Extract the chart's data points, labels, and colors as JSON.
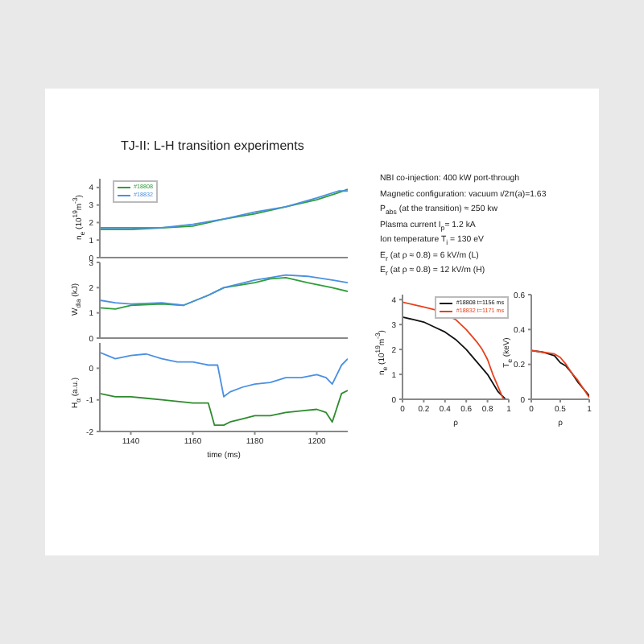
{
  "chart_data": [
    {
      "type": "other",
      "title": "TJ-II: L-H transition experiments",
      "annotations": [
        "NBI co-injection: 400 kW port-through",
        "Magnetic configuration: vacuum ι/2π(a)=1.63",
        "P$_{abs}$ (at the transition) ≈ 250 kw",
        "Plasma current I$_{p}$= 1.2 kA",
        "Ion temperature T$_{i}$ = 130 eV",
        "E$_{r}$ (at ρ ≈ 0.8) = 6 kV/m (L)",
        "E$_{r}$ (at ρ ≈ 0.8) = 12 kV/m (H)"
      ]
    },
    {
      "type": "line",
      "ylabel": "n$_{e}$ (10$^{19}$m$^{-3}$)",
      "xlim": [
        1130,
        1210
      ],
      "ylim": [
        0,
        4.5
      ],
      "yticks": [
        0,
        1,
        2,
        3,
        4
      ],
      "tick_labels": "y",
      "legend": "top left",
      "series": [
        {
          "name": "#18808",
          "color": "#2e9e3a",
          "x": [
            1130,
            1140,
            1150,
            1160,
            1170,
            1180,
            1190,
            1200,
            1207,
            1210
          ],
          "values": [
            1.6,
            1.6,
            1.7,
            1.8,
            2.2,
            2.5,
            2.9,
            3.3,
            3.7,
            3.9
          ]
        },
        {
          "name": "#18832",
          "color": "#4a90e2",
          "x": [
            1130,
            1140,
            1150,
            1160,
            1170,
            1180,
            1190,
            1200,
            1207,
            1210
          ],
          "values": [
            1.7,
            1.7,
            1.7,
            1.9,
            2.2,
            2.6,
            2.9,
            3.4,
            3.8,
            3.8
          ]
        }
      ]
    },
    {
      "type": "line",
      "ylabel": "W$_{dia}$ (kJ)",
      "xlim": [
        1130,
        1210
      ],
      "ylim": [
        0,
        3
      ],
      "yticks": [
        0,
        1,
        2,
        3
      ],
      "tick_labels": "y",
      "legend": false,
      "series": [
        {
          "color": "#2e9e3a",
          "x": [
            1130,
            1135,
            1140,
            1150,
            1157,
            1165,
            1170,
            1180,
            1185,
            1190,
            1197,
            1205,
            1210
          ],
          "values": [
            1.2,
            1.15,
            1.3,
            1.35,
            1.3,
            1.7,
            2.0,
            2.2,
            2.35,
            2.4,
            2.2,
            2.0,
            1.85
          ]
        },
        {
          "color": "#4a90e2",
          "x": [
            1130,
            1135,
            1140,
            1150,
            1157,
            1165,
            1170,
            1180,
            1185,
            1190,
            1197,
            1205,
            1210
          ],
          "values": [
            1.5,
            1.4,
            1.35,
            1.4,
            1.3,
            1.7,
            2.0,
            2.3,
            2.4,
            2.5,
            2.45,
            2.3,
            2.2
          ]
        }
      ]
    },
    {
      "type": "line",
      "xlabel": "time (ms)",
      "ylabel": "H$_{α}$ (a.u.)",
      "xlim": [
        1130,
        1210
      ],
      "xticks": [
        1140,
        1160,
        1180,
        1200
      ],
      "ylim": [
        -2,
        0.8
      ],
      "yticks": [
        -2,
        -1,
        0
      ],
      "legend": false,
      "series": [
        {
          "color": "#4a90e2",
          "x": [
            1130,
            1135,
            1140,
            1145,
            1150,
            1155,
            1160,
            1165,
            1168,
            1170,
            1172,
            1176,
            1180,
            1185,
            1190,
            1195,
            1200,
            1203,
            1205,
            1208,
            1210
          ],
          "values": [
            0.5,
            0.3,
            0.4,
            0.45,
            0.3,
            0.2,
            0.2,
            0.1,
            0.1,
            -0.9,
            -0.75,
            -0.6,
            -0.5,
            -0.45,
            -0.3,
            -0.3,
            -0.2,
            -0.3,
            -0.5,
            0.1,
            0.3
          ]
        },
        {
          "color": "#2e8b2e",
          "x": [
            1130,
            1135,
            1140,
            1145,
            1150,
            1155,
            1160,
            1165,
            1167,
            1170,
            1172,
            1176,
            1180,
            1185,
            1190,
            1195,
            1200,
            1203,
            1205,
            1208,
            1210
          ],
          "values": [
            -0.8,
            -0.9,
            -0.9,
            -0.95,
            -1.0,
            -1.05,
            -1.1,
            -1.1,
            -1.8,
            -1.8,
            -1.7,
            -1.6,
            -1.5,
            -1.5,
            -1.4,
            -1.35,
            -1.3,
            -1.4,
            -1.7,
            -0.8,
            -0.7
          ]
        }
      ]
    },
    {
      "type": "line",
      "xlabel": "ρ",
      "ylabel": "n$_{e}$ (10$^{19}$m$^{-3}$)",
      "xlim": [
        0,
        1
      ],
      "xticks": [
        0,
        0.2,
        0.4,
        0.6,
        0.8,
        1
      ],
      "ylim": [
        0,
        4.2
      ],
      "yticks": [
        0,
        1,
        2,
        3,
        4
      ],
      "legend": "top right",
      "series": [
        {
          "name": "#18808 t=1156 ms",
          "color": "#111111",
          "x": [
            0,
            0.1,
            0.2,
            0.3,
            0.4,
            0.5,
            0.6,
            0.7,
            0.8,
            0.9,
            0.97
          ],
          "values": [
            3.3,
            3.2,
            3.1,
            2.9,
            2.7,
            2.4,
            2.0,
            1.5,
            1.0,
            0.3,
            0
          ]
        },
        {
          "name": "#18832 t=1171 ms",
          "color": "#e8401c",
          "x": [
            0,
            0.1,
            0.2,
            0.3,
            0.4,
            0.5,
            0.6,
            0.7,
            0.75,
            0.8,
            0.85,
            0.9,
            0.95
          ],
          "values": [
            3.9,
            3.8,
            3.7,
            3.6,
            3.4,
            3.2,
            2.8,
            2.3,
            2.0,
            1.6,
            1.0,
            0.5,
            0
          ]
        }
      ]
    },
    {
      "type": "line",
      "xlabel": "ρ",
      "ylabel": "T$_{e}$ (keV)",
      "xlim": [
        0,
        1
      ],
      "xticks": [
        0,
        0.5,
        1
      ],
      "ylim": [
        0,
        0.6
      ],
      "yticks": [
        0,
        0.2,
        0.4,
        0.6
      ],
      "legend": false,
      "series": [
        {
          "color": "#111111",
          "x": [
            0,
            0.2,
            0.4,
            0.5,
            0.6,
            0.7,
            0.8,
            0.9,
            1
          ],
          "values": [
            0.28,
            0.27,
            0.25,
            0.21,
            0.19,
            0.15,
            0.1,
            0.06,
            0.02
          ]
        },
        {
          "color": "#e8401c",
          "x": [
            0,
            0.2,
            0.4,
            0.5,
            0.6,
            0.7,
            0.8,
            0.9,
            1
          ],
          "values": [
            0.28,
            0.27,
            0.26,
            0.24,
            0.2,
            0.15,
            0.11,
            0.06,
            0.01
          ]
        }
      ]
    }
  ]
}
